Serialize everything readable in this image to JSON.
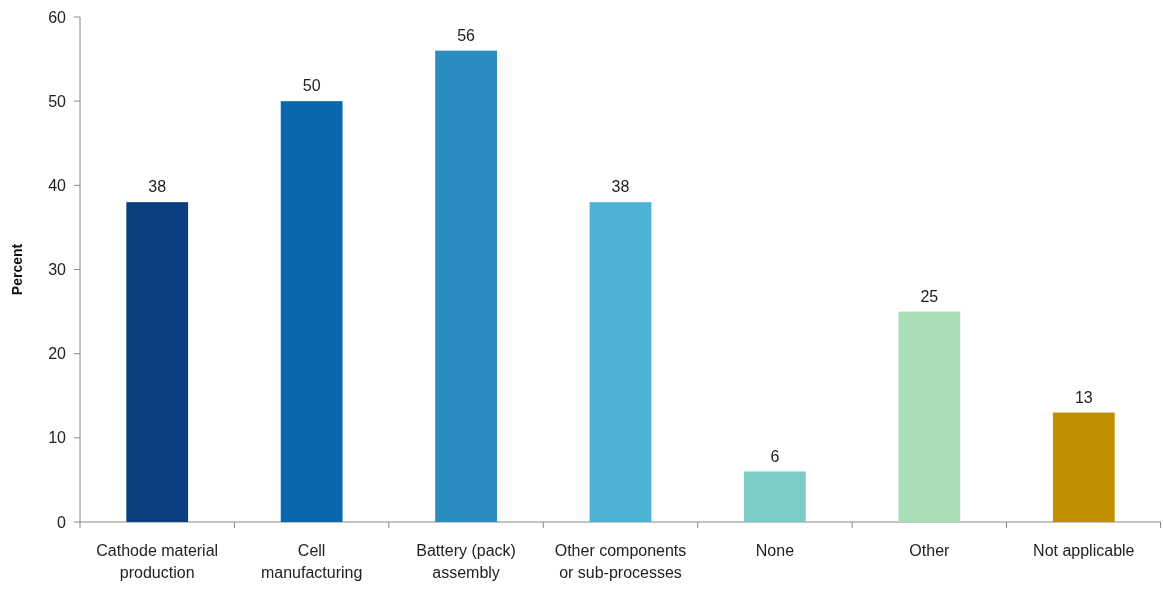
{
  "chart_data": {
    "type": "bar",
    "ylabel": "Percent",
    "categories": [
      "Cathode material production",
      "Cell manufacturing",
      "Battery (pack) assembly",
      "Other components or sub-processes",
      "None",
      "Other",
      "Not applicable"
    ],
    "values": [
      38,
      50,
      56,
      38,
      6,
      25,
      13
    ],
    "colors": [
      "#0b3f7f",
      "#0868ad",
      "#2b8cbf",
      "#4db2d3",
      "#7bccc4",
      "#a8ddb5",
      "#c09000"
    ],
    "ylim": [
      0,
      60
    ],
    "yticks": [
      0,
      10,
      20,
      30,
      40,
      50,
      60
    ],
    "grid": false,
    "data_labels": true
  }
}
